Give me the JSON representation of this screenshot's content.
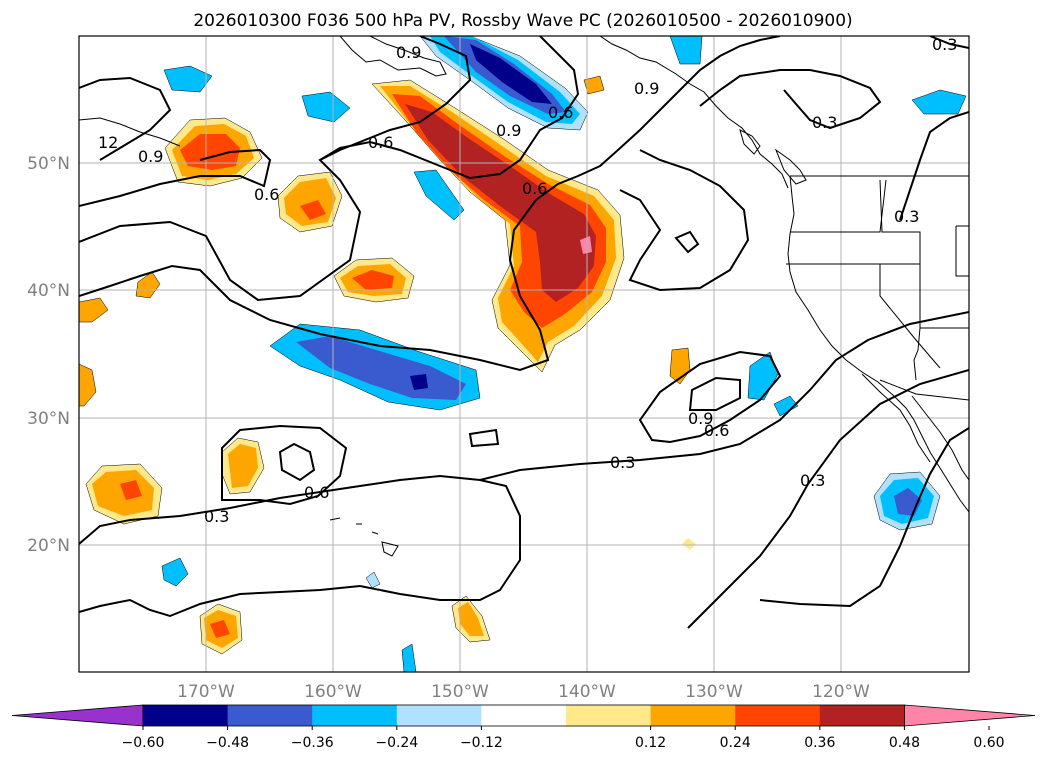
{
  "title": "2026010300 F036 500 hPa PV, Rossby Wave PC (2026010500 - 2026010900)",
  "lat_labels": [
    "50°N",
    "40°N",
    "30°N",
    "20°N"
  ],
  "lon_labels": [
    "170°W",
    "160°W",
    "150°W",
    "140°W",
    "130°W",
    "120°W"
  ],
  "contour_labels": [
    "0.9",
    "0.6",
    "0.9",
    "0.6",
    "0.3",
    "12",
    "0.9",
    "0.6",
    "0.6",
    "0.3",
    "0.9",
    "0.6",
    "0.3",
    "0.9",
    "0.6",
    "0.3",
    "0.3",
    "0.3"
  ],
  "colorbar": {
    "tick_labels": [
      "−0.60",
      "−0.48",
      "−0.36",
      "−0.24",
      "−0.12",
      "0.12",
      "0.24",
      "0.36",
      "0.48",
      "0.60"
    ],
    "colors": [
      "#9932cc",
      "#00008b",
      "#3a5bd0",
      "#00bfff",
      "#b0e2ff",
      "#ffffff",
      "#ffe98a",
      "#ffa500",
      "#ff4500",
      "#b22222",
      "#ff85a8"
    ]
  },
  "colors": {
    "pos_1": "#ffe98a",
    "pos_2": "#ffa500",
    "pos_3": "#ff4500",
    "pos_4": "#b22222",
    "pos_5": "#ff85a8",
    "neg_1": "#b0e2ff",
    "neg_2": "#00bfff",
    "neg_3": "#3a5bd0",
    "neg_4": "#00008b"
  }
}
